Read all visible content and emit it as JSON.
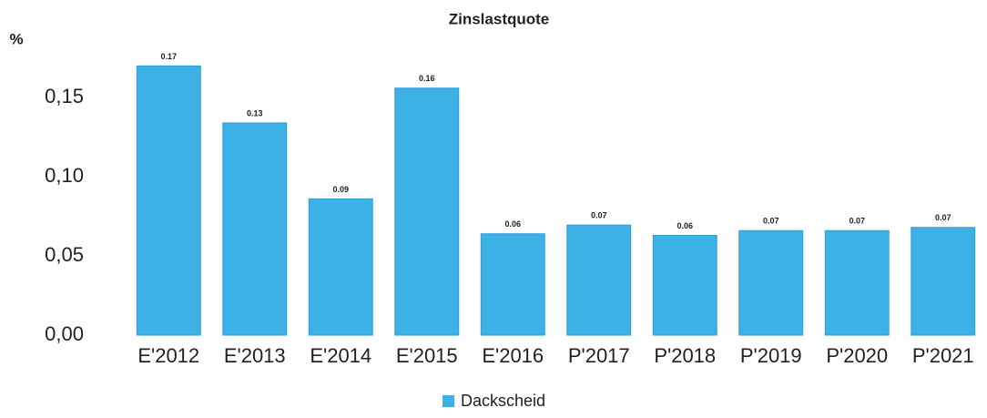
{
  "chart_data": {
    "type": "bar",
    "title": "Zinslastquote",
    "y_label": "%",
    "categories": [
      "E'2012",
      "E'2013",
      "E'2014",
      "E'2015",
      "E'2016",
      "P'2017",
      "P'2018",
      "P'2019",
      "P'2020",
      "P'2021"
    ],
    "series": [
      {
        "name": "Dackscheid",
        "color": "#3db0e6",
        "values": [
          0.17,
          0.134,
          0.086,
          0.156,
          0.064,
          0.0695,
          0.063,
          0.066,
          0.066,
          0.068
        ],
        "value_labels": [
          "0.17",
          "0.13",
          "0.09",
          "0.16",
          "0.06",
          "0.07",
          "0.06",
          "0.07",
          "0.07",
          "0.07"
        ]
      }
    ],
    "ylim": [
      0,
      0.18
    ],
    "yticks": [
      {
        "value": 0,
        "label": "0,00"
      },
      {
        "value": 0.05,
        "label": "0,05"
      },
      {
        "value": 0.1,
        "label": "0,10"
      },
      {
        "value": 0.15,
        "label": "0,15"
      }
    ],
    "grid": false,
    "legend": "bottom"
  }
}
